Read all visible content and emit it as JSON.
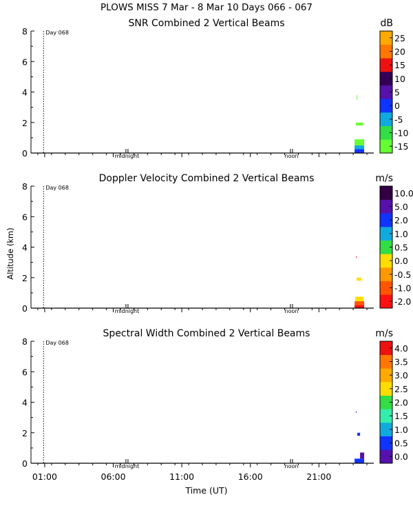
{
  "title": "PLOWS MISS   7 Mar -  8 Mar 10 Days 066 - 067",
  "xlabel": "Time (UT)",
  "ylabel": "Altitude (km)",
  "markers": {
    "day": "Day 068",
    "midnight": "midnight",
    "noon": "noon"
  },
  "colors": {
    "green": "#66ff00",
    "lightgreen": "#55ee33",
    "cyan": "#11aaee",
    "blue": "#1144ff",
    "purple": "#6611aa",
    "darkpurple": "#330044",
    "red": "#ff1111",
    "orange": "#ff7700",
    "yellow": "#ffdd00",
    "lightorange": "#ffaa00"
  },
  "chart_data": [
    {
      "type": "heatmap",
      "title": "SNR Combined 2 Vertical Beams",
      "units": "dB",
      "x_ticks": [
        "01:00",
        "06:00",
        "11:00",
        "16:00",
        "21:00"
      ],
      "xlim_hours": [
        -1.0,
        24.0
      ],
      "ylim": [
        0,
        8
      ],
      "y_ticks": [
        "0",
        "2",
        "4",
        "6",
        "8"
      ],
      "colorbar": {
        "ticks": [
          "-15",
          "-10",
          "-5",
          "0",
          "5",
          "10",
          "15",
          "20",
          "25"
        ],
        "colors": [
          "#66ff33",
          "#33dd44",
          "#11aadd",
          "#1133ff",
          "#5511aa",
          "#330055",
          "#ee1111",
          "#ff7700",
          "#ffaa00"
        ]
      },
      "cells": [
        {
          "t0": 22.6,
          "t1": 23.3,
          "z0": 0.0,
          "z1": 0.25,
          "v": "#1133ff"
        },
        {
          "t0": 22.6,
          "t1": 23.3,
          "z0": 0.25,
          "z1": 0.5,
          "v": "#11aadd"
        },
        {
          "t0": 22.6,
          "t1": 23.3,
          "z0": 0.5,
          "z1": 0.9,
          "v": "#66ff33"
        },
        {
          "t0": 22.7,
          "t1": 23.2,
          "z0": 1.8,
          "z1": 2.0,
          "v": "#66ff33"
        },
        {
          "t0": 22.75,
          "t1": 22.8,
          "z0": 3.5,
          "z1": 3.8,
          "v": "#66ff33"
        }
      ]
    },
    {
      "type": "heatmap",
      "title": "Doppler Velocity Combined 2 Vertical Beams",
      "units": "m/s",
      "x_ticks": [
        "01:00",
        "06:00",
        "11:00",
        "16:00",
        "21:00"
      ],
      "xlim_hours": [
        -1.0,
        24.0
      ],
      "ylim": [
        0,
        8
      ],
      "y_ticks": [
        "0",
        "2",
        "4",
        "6",
        "8"
      ],
      "colorbar": {
        "ticks": [
          "-2.0",
          "-1.0",
          "-0.5",
          "0.0",
          "0.5",
          "1.0",
          "2.0",
          "5.0",
          "10.0"
        ],
        "colors": [
          "#ff1111",
          "#ff5500",
          "#ff9900",
          "#ffdd00",
          "#33dd44",
          "#11aadd",
          "#1133ff",
          "#5511aa",
          "#330044"
        ]
      },
      "cells": [
        {
          "t0": 22.6,
          "t1": 23.3,
          "z0": 0.0,
          "z1": 0.2,
          "v": "#ff1111"
        },
        {
          "t0": 22.6,
          "t1": 23.3,
          "z0": 0.2,
          "z1": 0.45,
          "v": "#ff5500"
        },
        {
          "t0": 22.65,
          "t1": 23.25,
          "z0": 0.45,
          "z1": 0.75,
          "v": "#ffdd00"
        },
        {
          "t0": 22.75,
          "t1": 23.1,
          "z0": 1.8,
          "z1": 2.0,
          "v": "#ffdd00"
        },
        {
          "t0": 22.7,
          "t1": 22.75,
          "z0": 3.3,
          "z1": 3.4,
          "v": "#ff1111"
        }
      ]
    },
    {
      "type": "heatmap",
      "title": "Spectral Width Combined 2 Vertical Beams",
      "units": "m/s",
      "x_ticks": [
        "01:00",
        "06:00",
        "11:00",
        "16:00",
        "21:00"
      ],
      "xlim_hours": [
        -1.0,
        24.0
      ],
      "ylim": [
        0,
        8
      ],
      "y_ticks": [
        "0",
        "2",
        "4",
        "6",
        "8"
      ],
      "colorbar": {
        "ticks": [
          "0.0",
          "0.5",
          "1.0",
          "1.5",
          "2.0",
          "2.5",
          "3.0",
          "3.5",
          "4.0"
        ],
        "colors": [
          "#5511aa",
          "#1133ff",
          "#11aadd",
          "#33eeaa",
          "#33dd44",
          "#ffdd00",
          "#ffaa00",
          "#ff7700",
          "#ee1111"
        ]
      },
      "cells": [
        {
          "t0": 22.6,
          "t1": 23.3,
          "z0": 0.0,
          "z1": 0.3,
          "v": "#1133ff"
        },
        {
          "t0": 23.0,
          "t1": 23.3,
          "z0": 0.3,
          "z1": 0.7,
          "v": "#5511aa"
        },
        {
          "t0": 22.8,
          "t1": 23.0,
          "z0": 1.8,
          "z1": 2.0,
          "v": "#1133ff"
        },
        {
          "t0": 22.7,
          "t1": 22.75,
          "z0": 3.3,
          "z1": 3.4,
          "v": "#1133ff"
        }
      ]
    }
  ]
}
